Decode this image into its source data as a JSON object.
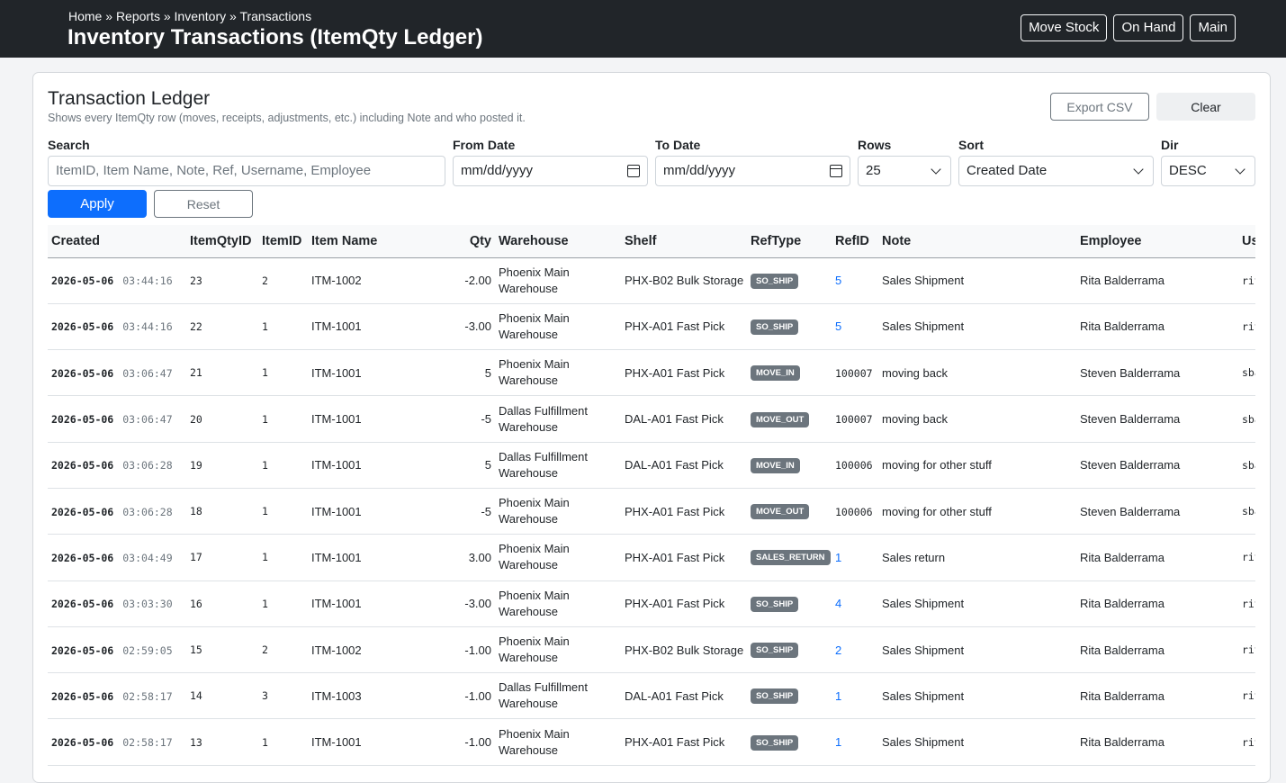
{
  "header": {
    "breadcrumb": [
      "Home",
      "Reports",
      "Inventory",
      "Transactions"
    ],
    "breadcrumb_sep": " » ",
    "title": "Inventory Transactions (ItemQty Ledger)",
    "buttons": {
      "move_stock": "Move Stock",
      "on_hand": "On Hand",
      "main": "Main"
    }
  },
  "card": {
    "title": "Transaction Ledger",
    "subtitle": "Shows every ItemQty row (moves, receipts, adjustments, etc.) including Note and who posted it.",
    "export_label": "Export CSV",
    "clear_label": "Clear"
  },
  "filters": {
    "search": {
      "label": "Search",
      "placeholder": "ItemID, Item Name, Note, Ref, Username, Employee"
    },
    "from_date": {
      "label": "From Date",
      "placeholder": "mm/dd/yyyy"
    },
    "to_date": {
      "label": "To Date",
      "placeholder": "mm/dd/yyyy"
    },
    "rows": {
      "label": "Rows",
      "value": "25"
    },
    "sort": {
      "label": "Sort",
      "value": "Created Date"
    },
    "dir": {
      "label": "Dir",
      "value": "DESC"
    },
    "apply_label": "Apply",
    "reset_label": "Reset"
  },
  "table": {
    "columns": [
      "Created",
      "ItemQtyID",
      "ItemID",
      "Item Name",
      "Qty",
      "Warehouse",
      "Shelf",
      "RefType",
      "RefID",
      "Note",
      "Employee",
      "Username"
    ],
    "rows": [
      {
        "date": "2026-05-06",
        "time": "03:44:16",
        "itemqtyid": "23",
        "itemid": "2",
        "item_name": "ITM-1002",
        "qty": "-2.00",
        "warehouse": "Phoenix Main Warehouse",
        "shelf": "PHX-B02 Bulk Storage",
        "reftype": "SO_SHIP",
        "refid": "5",
        "refid_link": true,
        "note": "Sales Shipment",
        "employee": "Rita Balderrama",
        "username": "ritab"
      },
      {
        "date": "2026-05-06",
        "time": "03:44:16",
        "itemqtyid": "22",
        "itemid": "1",
        "item_name": "ITM-1001",
        "qty": "-3.00",
        "warehouse": "Phoenix Main Warehouse",
        "shelf": "PHX-A01 Fast Pick",
        "reftype": "SO_SHIP",
        "refid": "5",
        "refid_link": true,
        "note": "Sales Shipment",
        "employee": "Rita Balderrama",
        "username": "ritab"
      },
      {
        "date": "2026-05-06",
        "time": "03:06:47",
        "itemqtyid": "21",
        "itemid": "1",
        "item_name": "ITM-1001",
        "qty": "5",
        "warehouse": "Phoenix Main Warehouse",
        "shelf": "PHX-A01 Fast Pick",
        "reftype": "MOVE_IN",
        "refid": "100007",
        "refid_link": false,
        "note": "moving back",
        "employee": "Steven Balderrama",
        "username": "sbalderrama"
      },
      {
        "date": "2026-05-06",
        "time": "03:06:47",
        "itemqtyid": "20",
        "itemid": "1",
        "item_name": "ITM-1001",
        "qty": "-5",
        "warehouse": "Dallas Fulfillment Warehouse",
        "shelf": "DAL-A01 Fast Pick",
        "reftype": "MOVE_OUT",
        "refid": "100007",
        "refid_link": false,
        "note": "moving back",
        "employee": "Steven Balderrama",
        "username": "sbalderrama"
      },
      {
        "date": "2026-05-06",
        "time": "03:06:28",
        "itemqtyid": "19",
        "itemid": "1",
        "item_name": "ITM-1001",
        "qty": "5",
        "warehouse": "Dallas Fulfillment Warehouse",
        "shelf": "DAL-A01 Fast Pick",
        "reftype": "MOVE_IN",
        "refid": "100006",
        "refid_link": false,
        "note": "moving for other stuff",
        "employee": "Steven Balderrama",
        "username": "sbalderrama"
      },
      {
        "date": "2026-05-06",
        "time": "03:06:28",
        "itemqtyid": "18",
        "itemid": "1",
        "item_name": "ITM-1001",
        "qty": "-5",
        "warehouse": "Phoenix Main Warehouse",
        "shelf": "PHX-A01 Fast Pick",
        "reftype": "MOVE_OUT",
        "refid": "100006",
        "refid_link": false,
        "note": "moving for other stuff",
        "employee": "Steven Balderrama",
        "username": "sbalderrama"
      },
      {
        "date": "2026-05-06",
        "time": "03:04:49",
        "itemqtyid": "17",
        "itemid": "1",
        "item_name": "ITM-1001",
        "qty": "3.00",
        "warehouse": "Phoenix Main Warehouse",
        "shelf": "PHX-A01 Fast Pick",
        "reftype": "SALES_RETURN",
        "refid": "1",
        "refid_link": true,
        "note": "Sales return",
        "employee": "Rita Balderrama",
        "username": "ritab"
      },
      {
        "date": "2026-05-06",
        "time": "03:03:30",
        "itemqtyid": "16",
        "itemid": "1",
        "item_name": "ITM-1001",
        "qty": "-3.00",
        "warehouse": "Phoenix Main Warehouse",
        "shelf": "PHX-A01 Fast Pick",
        "reftype": "SO_SHIP",
        "refid": "4",
        "refid_link": true,
        "note": "Sales Shipment",
        "employee": "Rita Balderrama",
        "username": "ritab"
      },
      {
        "date": "2026-05-06",
        "time": "02:59:05",
        "itemqtyid": "15",
        "itemid": "2",
        "item_name": "ITM-1002",
        "qty": "-1.00",
        "warehouse": "Phoenix Main Warehouse",
        "shelf": "PHX-B02 Bulk Storage",
        "reftype": "SO_SHIP",
        "refid": "2",
        "refid_link": true,
        "note": "Sales Shipment",
        "employee": "Rita Balderrama",
        "username": "ritab"
      },
      {
        "date": "2026-05-06",
        "time": "02:58:17",
        "itemqtyid": "14",
        "itemid": "3",
        "item_name": "ITM-1003",
        "qty": "-1.00",
        "warehouse": "Dallas Fulfillment Warehouse",
        "shelf": "DAL-A01 Fast Pick",
        "reftype": "SO_SHIP",
        "refid": "1",
        "refid_link": true,
        "note": "Sales Shipment",
        "employee": "Rita Balderrama",
        "username": "ritab"
      },
      {
        "date": "2026-05-06",
        "time": "02:58:17",
        "itemqtyid": "13",
        "itemid": "1",
        "item_name": "ITM-1001",
        "qty": "-1.00",
        "warehouse": "Phoenix Main Warehouse",
        "shelf": "PHX-A01 Fast Pick",
        "reftype": "SO_SHIP",
        "refid": "1",
        "refid_link": true,
        "note": "Sales Shipment",
        "employee": "Rita Balderrama",
        "username": "ritab"
      }
    ]
  }
}
